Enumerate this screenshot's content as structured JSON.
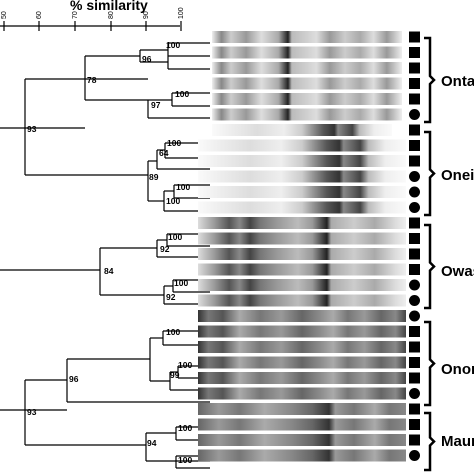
{
  "axis": {
    "title": "% similarity",
    "ticks": [
      "50",
      "60",
      "70",
      "80",
      "90",
      "100"
    ]
  },
  "nodes": [
    "100",
    "96",
    "78",
    "100",
    "97",
    "93",
    "100",
    "64",
    "89",
    "100",
    "100",
    "100",
    "92",
    "84",
    "100",
    "92",
    "100",
    "96",
    "100",
    "99",
    "93",
    "100",
    "94",
    "100"
  ],
  "groups": [
    "Onta",
    "Oneid",
    "Owas",
    "Onon",
    "Maur"
  ],
  "lane_markers": [
    "square",
    "square",
    "square",
    "square",
    "square",
    "circle",
    "square",
    "square",
    "square",
    "circle",
    "circle",
    "circle",
    "square",
    "square",
    "square",
    "square",
    "circle",
    "circle",
    "circle",
    "square",
    "square",
    "square",
    "square",
    "circle",
    "square",
    "square",
    "square",
    "circle"
  ]
}
